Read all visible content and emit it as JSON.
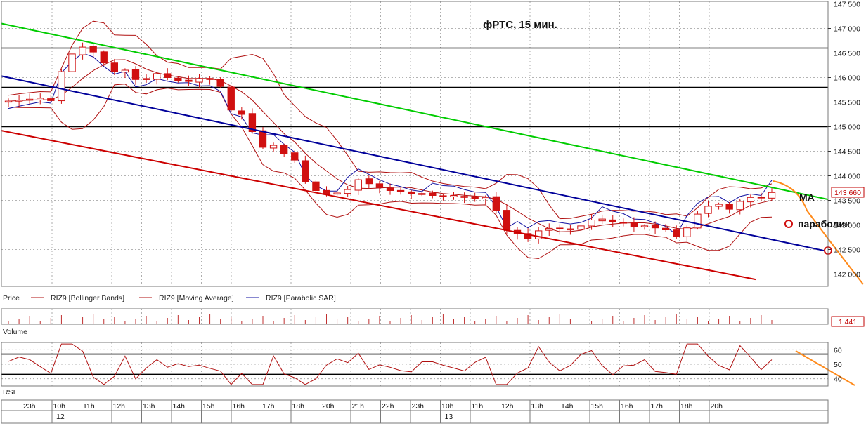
{
  "chart_data": {
    "type": "candlestick",
    "title": "фРТС,  15 мин.",
    "price_axis": {
      "ylim": [
        141750,
        147550
      ],
      "ticks": [
        147500,
        147000,
        146500,
        146000,
        145500,
        145000,
        144500,
        144000,
        143500,
        143000,
        142500,
        142000
      ],
      "tick_labels": [
        "147 500",
        "147 000",
        "146 500",
        "146 000",
        "145 500",
        "145 000",
        "144 500",
        "144 000",
        "143 500",
        "143 000",
        "142 500",
        "142 000"
      ],
      "last_price": "143 660"
    },
    "legend": [
      "Price",
      "RIZ9 [Bollinger Bands]",
      "RIZ9 [Moving Average]",
      "RIZ9 [Parabolic SAR]"
    ],
    "horizontal_levels": [
      146600,
      145800,
      145000
    ],
    "trend_lines": [
      {
        "color": "#00cc00",
        "start": 147100,
        "end": 143520
      },
      {
        "color": "#00009a",
        "start": 146030,
        "end": 142460
      },
      {
        "color": "#cc0000",
        "start": 144920,
        "end": 141600
      }
    ],
    "series_close": [
      145520,
      145540,
      145560,
      145580,
      145530,
      146120,
      146480,
      146620,
      146520,
      146300,
      146120,
      146150,
      145960,
      145980,
      146080,
      146000,
      145940,
      145920,
      145980,
      145960,
      145820,
      145340,
      145250,
      144900,
      144580,
      144620,
      144450,
      144320,
      143880,
      143700,
      143620,
      143650,
      143720,
      143920,
      143840,
      143760,
      143700,
      143680,
      143640,
      143640,
      143600,
      143580,
      143600,
      143560,
      143540,
      143560,
      143300,
      142900,
      142820,
      142720,
      142880,
      142930,
      142920,
      142920,
      142980,
      143100,
      143120,
      143060,
      143040,
      142960,
      142980,
      142940,
      142900,
      142760,
      142940,
      143220,
      143380,
      143420,
      143320,
      143480,
      143560,
      143560,
      143660
    ],
    "volume": {
      "label": "Volume",
      "last_value": "1 441"
    },
    "rsi": {
      "label": "RSI",
      "ylim": [
        35,
        65
      ],
      "ticks": [
        60,
        50,
        40
      ],
      "tick_labels": [
        "60",
        "50",
        "40"
      ],
      "levels": [
        57,
        43
      ]
    },
    "time_axis": {
      "labels": [
        "23h",
        "10h",
        "11h",
        "12h",
        "13h",
        "14h",
        "15h",
        "16h",
        "17h",
        "18h",
        "20h",
        "21h",
        "22h",
        "23h",
        "10h",
        "11h",
        "12h",
        "13h",
        "14h",
        "15h",
        "16h",
        "17h",
        "18h",
        "20h"
      ],
      "dates": [
        "12",
        "13"
      ]
    },
    "annotations": {
      "ma": "MA",
      "parabolic": "параболик"
    },
    "grid": true
  }
}
